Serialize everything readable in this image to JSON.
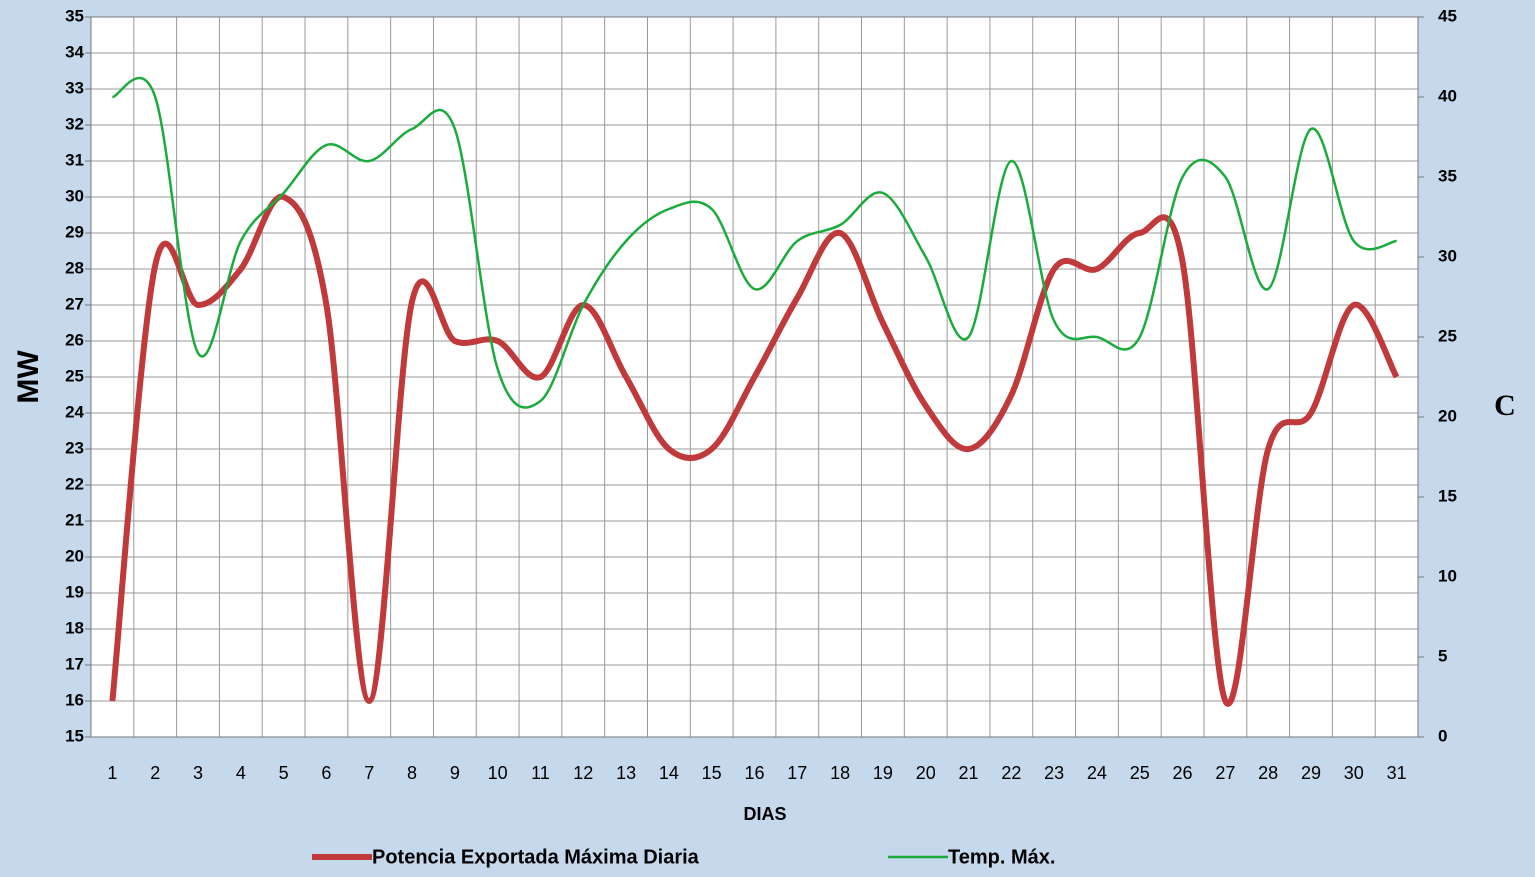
{
  "chart_data": {
    "type": "line",
    "x_label": "DIAS",
    "y_label": "MW",
    "y2_label": "C",
    "categories": [
      "1",
      "2",
      "3",
      "4",
      "5",
      "6",
      "7",
      "8",
      "9",
      "10",
      "11",
      "12",
      "13",
      "14",
      "15",
      "16",
      "17",
      "18",
      "19",
      "20",
      "21",
      "22",
      "23",
      "24",
      "25",
      "26",
      "27",
      "28",
      "29",
      "30",
      "31"
    ],
    "series": [
      {
        "name": "Potencia Exportada Máxima Diaria",
        "color": "#c0393b",
        "values": [
          16,
          28.1,
          27,
          28,
          30,
          27,
          16,
          27.1,
          26,
          26,
          25,
          27,
          25,
          23,
          23,
          25,
          27.2,
          29,
          26.5,
          24.2,
          23,
          24.5,
          28,
          28,
          29,
          28.2,
          16,
          23,
          24,
          27,
          25
        ]
      },
      {
        "name": "Temp. Máx.",
        "color": "#1aab3c",
        "axis": "y2",
        "values": [
          40,
          40,
          24,
          31,
          34,
          37,
          36,
          38,
          38,
          23,
          21,
          27,
          31,
          33,
          33,
          28,
          31,
          32,
          34,
          30,
          25,
          36,
          26,
          25,
          25,
          35,
          35,
          28,
          38,
          31,
          31
        ]
      }
    ],
    "ylim": [
      15,
      35
    ],
    "yticks": [
      15,
      16,
      17,
      18,
      19,
      20,
      21,
      22,
      23,
      24,
      25,
      26,
      27,
      28,
      29,
      30,
      31,
      32,
      33,
      34,
      35
    ],
    "y2lim": [
      0,
      45
    ],
    "y2ticks": [
      0,
      5,
      10,
      15,
      20,
      25,
      30,
      35,
      40,
      45
    ],
    "grid": true,
    "legend": "bottom"
  }
}
